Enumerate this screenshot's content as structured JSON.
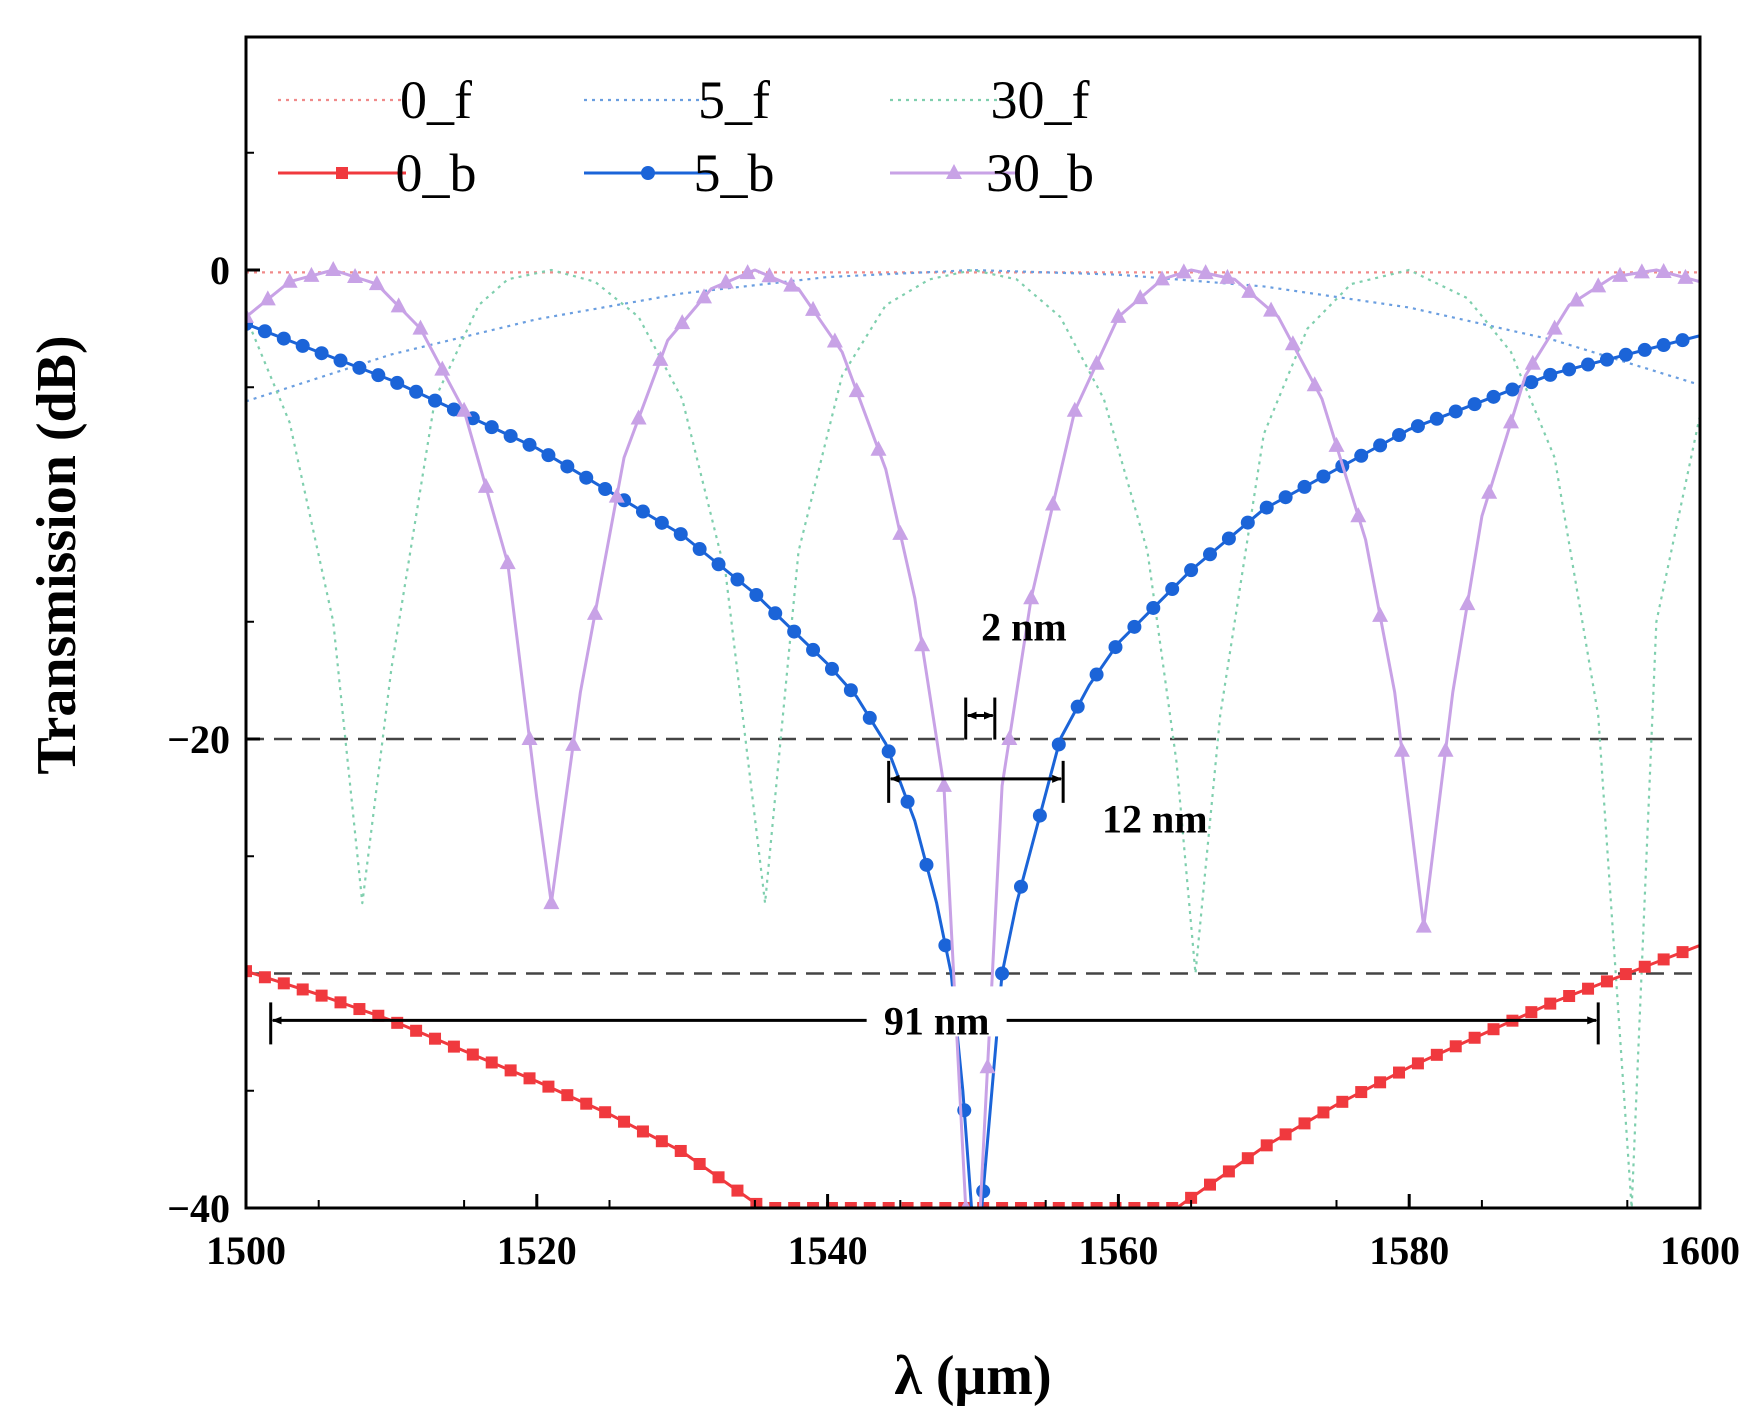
{
  "chart_data": {
    "type": "line",
    "title": "",
    "xlabel": "λ (μm)",
    "ylabel": "Transmission (dB)",
    "xlim": [
      1500,
      1600
    ],
    "ylim": [
      -40,
      10
    ],
    "xticks": [
      1500,
      1520,
      1540,
      1560,
      1580,
      1600
    ],
    "xtick_labels": [
      "1500",
      "1520",
      "1540",
      "1560",
      "1580",
      "1600"
    ],
    "yticks": [
      -40,
      -20,
      0
    ],
    "ytick_labels": [
      "−40",
      "−20",
      "0"
    ],
    "legend_position": "top-left",
    "reference_lines": [
      -20,
      -30
    ],
    "series": [
      {
        "name": "0_f",
        "style": "dotted",
        "color": "#f08a8a",
        "marker": "none",
        "x": [
          1500,
          1525,
          1550,
          1575,
          1600
        ],
        "y": [
          -0.1,
          -0.1,
          -0.1,
          -0.1,
          -0.1
        ]
      },
      {
        "name": "5_f",
        "style": "dotted",
        "color": "#6a9ee0",
        "marker": "none",
        "x": [
          1500,
          1510,
          1520,
          1530,
          1540,
          1550,
          1560,
          1570,
          1580,
          1590,
          1600
        ],
        "y": [
          -5.6,
          -3.6,
          -2.1,
          -1.0,
          -0.3,
          0.0,
          -0.2,
          -0.7,
          -1.6,
          -3.0,
          -4.9
        ]
      },
      {
        "name": "30_f",
        "style": "dotted",
        "color": "#7fcfae",
        "marker": "none",
        "x": [
          1500,
          1503,
          1506,
          1508,
          1510,
          1513,
          1516,
          1518,
          1521,
          1524,
          1527,
          1530,
          1533,
          1535.7,
          1538,
          1541,
          1544,
          1547,
          1550,
          1553,
          1556,
          1559,
          1562,
          1564,
          1565.3,
          1567,
          1570,
          1573,
          1576,
          1580,
          1584,
          1587,
          1590,
          1593,
          1595.3,
          1597,
          1600
        ],
        "y": [
          -2.0,
          -6.5,
          -15.0,
          -27.0,
          -17.0,
          -5.5,
          -1.5,
          -0.4,
          0.0,
          -0.5,
          -2.0,
          -5.5,
          -13.0,
          -27.0,
          -12.0,
          -4.5,
          -1.5,
          -0.4,
          0.0,
          -0.4,
          -2.0,
          -5.5,
          -12.0,
          -21.0,
          -30.0,
          -19.0,
          -7.0,
          -2.5,
          -0.6,
          0.0,
          -1.2,
          -3.5,
          -8.0,
          -19.0,
          -40.0,
          -15.0,
          -6.2
        ]
      },
      {
        "name": "0_b",
        "style": "solid",
        "color": "#f0393e",
        "marker": "square",
        "x": [
          1500,
          1505,
          1510,
          1515,
          1520,
          1525,
          1530,
          1535.5,
          1564,
          1570,
          1575,
          1580,
          1585,
          1590,
          1595,
          1600
        ],
        "y": [
          -29.9,
          -30.9,
          -32.0,
          -33.3,
          -34.6,
          -36.0,
          -37.6,
          -40.0,
          -40.0,
          -37.4,
          -35.6,
          -34.0,
          -32.6,
          -31.2,
          -30.0,
          -28.8
        ]
      },
      {
        "name": "5_b",
        "style": "solid",
        "color": "#1b64d8",
        "marker": "circle",
        "x": [
          1500,
          1510,
          1520,
          1530,
          1535,
          1540,
          1542,
          1544,
          1546,
          1547.5,
          1548.5,
          1549.3,
          1549.9,
          1550.6,
          1551.3,
          1552,
          1553,
          1554.5,
          1556,
          1558,
          1560,
          1565,
          1570,
          1580,
          1590,
          1600
        ],
        "y": [
          -2.3,
          -4.7,
          -7.6,
          -11.3,
          -13.8,
          -16.8,
          -18.2,
          -20.2,
          -23.5,
          -27.0,
          -30.0,
          -35.0,
          -40.0,
          -40.0,
          -35.0,
          -30.0,
          -27.0,
          -23.5,
          -20.0,
          -17.7,
          -15.9,
          -12.8,
          -10.2,
          -6.8,
          -4.4,
          -2.8
        ]
      },
      {
        "name": "30_b",
        "style": "solid",
        "color": "#c8a2e6",
        "marker": "triangle",
        "x": [
          1500,
          1503,
          1506,
          1509,
          1512,
          1515,
          1518,
          1520,
          1521,
          1523,
          1526,
          1529,
          1532,
          1535,
          1538,
          1541,
          1544,
          1546,
          1548,
          1549.5,
          1550.5,
          1552,
          1554,
          1557,
          1560,
          1563,
          1565,
          1568,
          1571,
          1574,
          1577,
          1579,
          1581,
          1583,
          1585,
          1588,
          1591,
          1594,
          1597,
          1600
        ],
        "y": [
          -2.0,
          -0.5,
          0.0,
          -0.6,
          -2.5,
          -6.0,
          -12.5,
          -22.5,
          -27.0,
          -18.0,
          -8.0,
          -3.0,
          -0.8,
          0.0,
          -0.8,
          -3.5,
          -8.5,
          -14.0,
          -22.0,
          -40.0,
          -40.0,
          -22.0,
          -14.0,
          -6.0,
          -2.0,
          -0.4,
          0.0,
          -0.4,
          -2.0,
          -5.5,
          -11.5,
          -18.0,
          -28.0,
          -18.0,
          -10.5,
          -4.5,
          -1.5,
          -0.3,
          0.0,
          -0.5
        ]
      }
    ],
    "annotations": [
      {
        "text": "2 nm",
        "x_range": [
          1549.5,
          1551.5
        ],
        "y": -19,
        "label_x": 1553.5,
        "label_y": -15.2
      },
      {
        "text": "12 nm",
        "x_range": [
          1544.2,
          1556.2
        ],
        "y": -21.7,
        "label_x": 1562.5,
        "label_y": -23.4
      },
      {
        "text": "91 nm",
        "x_range": [
          1501.7,
          1593
        ],
        "y": -32,
        "label_x": 1547.5,
        "label_y": -32.0
      }
    ]
  }
}
